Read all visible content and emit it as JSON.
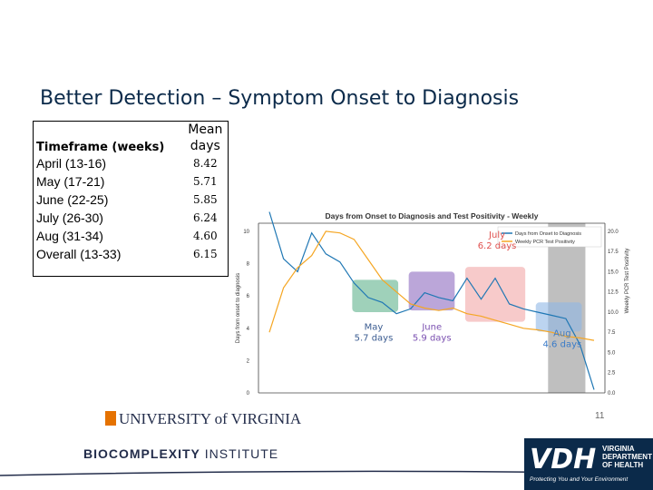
{
  "slide": {
    "title": "Better Detection – Symptom Onset to Diagnosis",
    "number": "11"
  },
  "table": {
    "header_col1": "Timeframe (weeks)",
    "header_col2_line1": "Mean",
    "header_col2_line2": "days",
    "rows": [
      {
        "timeframe": "April (13-16)",
        "mean_days": "8.42"
      },
      {
        "timeframe": "May (17-21)",
        "mean_days": "5.71"
      },
      {
        "timeframe": "June (22-25)",
        "mean_days": "5.85"
      },
      {
        "timeframe": "July (26-30)",
        "mean_days": "6.24"
      },
      {
        "timeframe": "Aug (31-34)",
        "mean_days": "4.60"
      },
      {
        "timeframe": "Overall (13-33)",
        "mean_days": "6.15"
      }
    ]
  },
  "chart_data": {
    "type": "line",
    "title": "Days from Onset to Diagnosis and Test Positivity - Weekly",
    "ylabel": "Days from onset to diagnosis",
    "y2label": "Weekly PCR Test Positivity",
    "ylim": [
      0,
      10.5
    ],
    "y2lim": [
      0,
      21
    ],
    "yticks": [
      0,
      2,
      4,
      6,
      8,
      10
    ],
    "y2ticks": [
      "0.0",
      "2.5",
      "5.0",
      "7.5",
      "10.0",
      "12.5",
      "15.0",
      "17.5",
      "20.0"
    ],
    "legend_position": "top-right",
    "x_index": [
      0,
      1,
      2,
      3,
      4,
      5,
      6,
      7,
      8,
      9,
      10,
      11,
      12,
      13,
      14,
      15,
      16,
      17,
      18,
      19,
      20,
      21,
      22,
      23
    ],
    "series": [
      {
        "name": "Days from Onset to Diagnosis",
        "color": "#1f77b4",
        "values": [
          11.2,
          8.3,
          7.5,
          9.9,
          8.6,
          8.1,
          6.8,
          5.9,
          5.6,
          4.9,
          5.2,
          6.2,
          5.9,
          5.7,
          7.1,
          5.8,
          7.1,
          5.5,
          5.2,
          5.0,
          4.8,
          4.6,
          3.0,
          0.2
        ]
      },
      {
        "name": "Weekly PCR Test Positivity",
        "color": "#f5a623",
        "values": [
          7.5,
          13.0,
          15.5,
          17.0,
          20.0,
          19.8,
          19.0,
          16.5,
          14.0,
          12.5,
          11.0,
          10.5,
          10.2,
          10.5,
          9.8,
          9.5,
          9.0,
          8.5,
          8.0,
          7.8,
          7.5,
          7.0,
          6.8,
          6.5
        ]
      }
    ],
    "regions": [
      {
        "label_line1": "May",
        "label_line2": "5.7 days",
        "fill": "#5fb28c",
        "text_color": "#3b5c91"
      },
      {
        "label_line1": "June",
        "label_line2": "5.9 days",
        "fill": "#8e6bc0",
        "text_color": "#7a4fb0"
      },
      {
        "label_line1": "July",
        "label_line2": "6.2 days",
        "fill": "#f2a6a6",
        "text_color": "#e0514f"
      },
      {
        "label_line1": "Aug",
        "label_line2": "4.6 days",
        "fill": "#8fb8e6",
        "text_color": "#3a7bc8"
      }
    ],
    "shaded_band_color": "#a9a9a9"
  },
  "footer": {
    "uva_text": "UNIVERSITY of VIRGINIA",
    "bio_text_bold": "BIOCOMPLEXITY",
    "bio_text_rest": "INSTITUTE",
    "vdh_letters": "VDH",
    "vdh_lines": [
      "VIRGINIA",
      "DEPARTMENT",
      "OF HEALTH"
    ],
    "vdh_tagline": "Protecting You and Your Environment"
  }
}
